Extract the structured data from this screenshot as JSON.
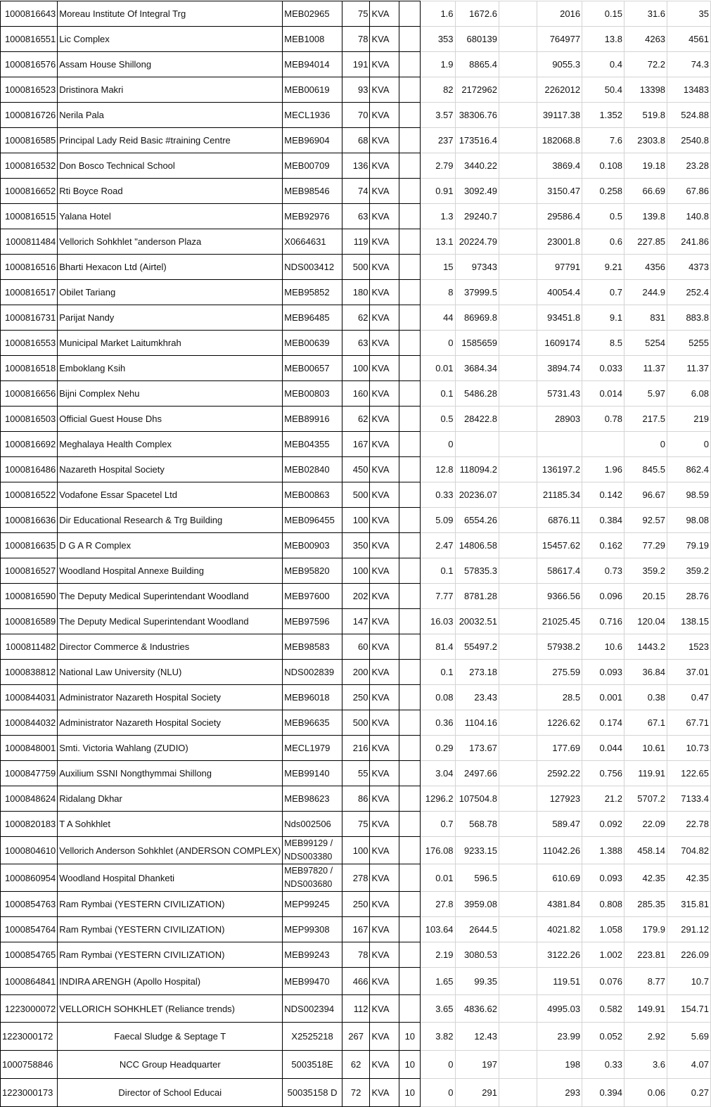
{
  "sheet": {
    "rows": [
      [
        "1000816643",
        "Moreau Institute Of Integral Trg",
        "MEB02965",
        "75",
        "KVA",
        "",
        "1.6",
        "1672.6",
        "",
        "2016",
        "0.15",
        "31.6",
        "35"
      ],
      [
        "1000816551",
        "Lic  Complex",
        "MEB1008",
        "78",
        "KVA",
        "",
        "353",
        "680139",
        "",
        "764977",
        "13.8",
        "4263",
        "4561"
      ],
      [
        "1000816576",
        "Assam House Shillong",
        "MEB94014",
        "191",
        "KVA",
        "",
        "1.9",
        "8865.4",
        "",
        "9055.3",
        "0.4",
        "72.2",
        "74.3"
      ],
      [
        "1000816523",
        "Dristinora  Makri",
        "MEB00619",
        "93",
        "KVA",
        "",
        "82",
        "2172962",
        "",
        "2262012",
        "50.4",
        "13398",
        "13483"
      ],
      [
        "1000816726",
        "Nerila  Pala",
        "MECL1936",
        "70",
        "KVA",
        "",
        "3.57",
        "38306.76",
        "",
        "39117.38",
        "1.352",
        "519.8",
        "524.88"
      ],
      [
        "1000816585",
        "Principal  Lady Reid Basic #training Centre",
        "MEB96904",
        "68",
        "KVA",
        "",
        "237",
        "173516.4",
        "",
        "182068.8",
        "7.6",
        "2303.8",
        "2540.8"
      ],
      [
        "1000816532",
        "Don Bosco Technical School",
        "MEB00709",
        "136",
        "KVA",
        "",
        "2.79",
        "3440.22",
        "",
        "3869.4",
        "0.108",
        "19.18",
        "23.28"
      ],
      [
        "1000816652",
        "Rti Boyce Road",
        "MEB98546",
        "74",
        "KVA",
        "",
        "0.91",
        "3092.49",
        "",
        "3150.47",
        "0.258",
        "66.69",
        "67.86"
      ],
      [
        "1000816515",
        "Yalana  Hotel",
        "MEB92976",
        "63",
        "KVA",
        "",
        "1.3",
        "29240.7",
        "",
        "29586.4",
        "0.5",
        "139.8",
        "140.8"
      ],
      [
        "1000811484",
        "Vellorich  Sohkhlet \"anderson Plaza",
        "X0664631",
        "119",
        "KVA",
        "",
        "13.1",
        "20224.79",
        "",
        "23001.8",
        "0.6",
        "227.85",
        "241.86"
      ],
      [
        "1000816516",
        "Bharti Hexacon Ltd (Airtel)",
        "NDS003412",
        "500",
        "KVA",
        "",
        "15",
        "97343",
        "",
        "97791",
        "9.21",
        "4356",
        "4373"
      ],
      [
        "1000816517",
        "Obilet  Tariang",
        "MEB95852",
        "180",
        "KVA",
        "",
        "8",
        "37999.5",
        "",
        "40054.4",
        "0.7",
        "244.9",
        "252.4"
      ],
      [
        "1000816731",
        "Parijat  Nandy",
        "MEB96485",
        "62",
        "KVA",
        "",
        "44",
        "86969.8",
        "",
        "93451.8",
        "9.1",
        "831",
        "883.8"
      ],
      [
        "1000816553",
        "Municipal Market Laitumkhrah",
        "MEB00639",
        "63",
        "KVA",
        "",
        "0",
        "1585659",
        "",
        "1609174",
        "8.5",
        "5254",
        "5255"
      ],
      [
        "1000816518",
        "Emboklang  Ksih",
        "MEB00657",
        "100",
        "KVA",
        "",
        "0.01",
        "3684.34",
        "",
        "3894.74",
        "0.033",
        "11.37",
        "11.37"
      ],
      [
        "1000816656",
        "Bijni Complex Nehu",
        "MEB00803",
        "160",
        "KVA",
        "",
        "0.1",
        "5486.28",
        "",
        "5731.43",
        "0.014",
        "5.97",
        "6.08"
      ],
      [
        "1000816503",
        "Official Guest House Dhs",
        "MEB89916",
        "62",
        "KVA",
        "",
        "0.5",
        "28422.8",
        "",
        "28903",
        "0.78",
        "217.5",
        "219"
      ],
      [
        "1000816692",
        "Meghalaya Health Complex",
        "MEB04355",
        "167",
        "KVA",
        "",
        "0",
        "",
        "",
        "",
        "",
        "0",
        "0"
      ],
      [
        "1000816486",
        "Nazareth  Hospital Society",
        "MEB02840",
        "450",
        "KVA",
        "",
        "12.8",
        "118094.2",
        "",
        "136197.2",
        "1.96",
        "845.5",
        "862.4"
      ],
      [
        "1000816522",
        "Vodafone Essar Spacetel Ltd",
        "MEB00863",
        "500",
        "KVA",
        "",
        "0.33",
        "20236.07",
        "",
        "21185.34",
        "0.142",
        "96.67",
        "98.59"
      ],
      [
        "1000816636",
        "Dir Educational Research & Trg Building",
        "MEB096455",
        "100",
        "KVA",
        "",
        "5.09",
        "6554.26",
        "",
        "6876.11",
        "0.384",
        "92.57",
        "98.08"
      ],
      [
        "1000816635",
        "D G A R  Complex",
        "MEB00903",
        "350",
        "KVA",
        "",
        "2.47",
        "14806.58",
        "",
        "15457.62",
        "0.162",
        "77.29",
        "79.19"
      ],
      [
        "1000816527",
        "Woodland Hospital Annexe Building",
        "MEB95820",
        "100",
        "KVA",
        "",
        "0.1",
        "57835.3",
        "",
        "58617.4",
        "0.73",
        "359.2",
        "359.2"
      ],
      [
        "1000816590",
        "The Deputy Medical Superintendant  Woodland",
        "MEB97600",
        "202",
        "KVA",
        "",
        "7.77",
        "8781.28",
        "",
        "9366.56",
        "0.096",
        "20.15",
        "28.76"
      ],
      [
        "1000816589",
        "The Deputy Medical Superintendant  Woodland",
        "MEB97596",
        "147",
        "KVA",
        "",
        "16.03",
        "20032.51",
        "",
        "21025.45",
        "0.716",
        "120.04",
        "138.15"
      ],
      [
        "1000811482",
        "Director Commerce &  Industries",
        "MEB98583",
        "60",
        "KVA",
        "",
        "81.4",
        "55497.2",
        "",
        "57938.2",
        "10.6",
        "1443.2",
        "1523"
      ],
      [
        "1000838812",
        "National Law University (NLU)",
        "NDS002839",
        "200",
        "KVA",
        "",
        "0.1",
        "273.18",
        "",
        "275.59",
        "0.093",
        "36.84",
        "37.01"
      ],
      [
        "1000844031",
        "Administrator Nazareth Hospital Society",
        "MEB96018",
        "250",
        "KVA",
        "",
        "0.08",
        "23.43",
        "",
        "28.5",
        "0.001",
        "0.38",
        "0.47"
      ],
      [
        "1000844032",
        "Administrator Nazareth Hospital Society",
        "MEB96635",
        "500",
        "KVA",
        "",
        "0.36",
        "1104.16",
        "",
        "1226.62",
        "0.174",
        "67.1",
        "67.71"
      ],
      [
        "1000848001",
        "Smti. Victoria Wahlang (ZUDIO)",
        "MECL1979",
        "216",
        "KVA",
        "",
        "0.29",
        "173.67",
        "",
        "177.69",
        "0.044",
        "10.61",
        "10.73"
      ],
      [
        "1000847759",
        "Auxilium SSNI Nongthymmai Shillong",
        "MEB99140",
        "55",
        "KVA",
        "",
        "3.04",
        "2497.66",
        "",
        "2592.22",
        "0.756",
        "119.91",
        "122.65"
      ],
      [
        "1000848624",
        "Ridalang Dkhar",
        "MEB98623",
        "86",
        "KVA",
        "",
        "1296.2",
        "107504.8",
        "",
        "127923",
        "21.2",
        "5707.2",
        "7133.4"
      ],
      [
        "1000820183",
        "T A Sohkhlet",
        "Nds002506",
        "75",
        "KVA",
        "",
        "0.7",
        "568.78",
        "",
        "589.47",
        "0.092",
        "22.09",
        "22.78"
      ],
      [
        "1000804610",
        "Vellorich Anderson Sohkhlet (ANDERSON COMPLEX)",
        "MEB99129 /\nNDS003380",
        "100",
        "KVA",
        "",
        "176.08",
        "9233.15",
        "",
        "11042.26",
        "1.388",
        "458.14",
        "704.82"
      ],
      [
        "1000860954",
        "Woodland Hospital Dhanketi",
        "MEB97820 /\nNDS003680",
        "278",
        "KVA",
        "",
        "0.01",
        "596.5",
        "",
        "610.69",
        "0.093",
        "42.35",
        "42.35"
      ],
      [
        "1000854763",
        "Ram Rymbai (YESTERN CIVILIZATION)",
        "MEP99245",
        "250",
        "KVA",
        "",
        "27.8",
        "3959.08",
        "",
        "4381.84",
        "0.808",
        "285.35",
        "315.81"
      ],
      [
        "1000854764",
        "Ram Rymbai (YESTERN CIVILIZATION)",
        "MEP99308",
        "167",
        "KVA",
        "",
        "103.64",
        "2644.5",
        "",
        "4021.82",
        "1.058",
        "179.9",
        "291.12"
      ],
      [
        "1000854765",
        "Ram Rymbai (YESTERN CIVILIZATION)",
        "MEB99243",
        "78",
        "KVA",
        "",
        "2.19",
        "3080.53",
        "",
        "3122.26",
        "1.002",
        "223.81",
        "226.09"
      ],
      [
        "1000864841",
        "INDIRA ARENGH (Apollo Hospital)",
        "MEB99470",
        "466",
        "KVA",
        "",
        "1.65",
        "99.35",
        "",
        "119.51",
        "0.076",
        "8.77",
        "10.7"
      ],
      [
        "1223000072",
        "VELLORICH SOHKHLET (Reliance trends)",
        "NDS002394",
        "112",
        "KVA",
        "",
        "3.65",
        "4836.62",
        "",
        "4995.03",
        "0.582",
        "149.91",
        "154.71"
      ],
      [
        "1223000172",
        "Faecal Sludge & Septage T",
        "X2525218",
        "267",
        "KVA",
        "10",
        "3.82",
        "12.43",
        "",
        "23.99",
        "0.052",
        "2.92",
        "5.69"
      ],
      [
        "1000758846",
        "NCC Group Headquarter",
        "5003518E",
        "62",
        "KVA",
        "10",
        "0",
        "197",
        "",
        "198",
        "0.33",
        "3.6",
        "4.07"
      ],
      [
        "1223000173",
        "Director of School Educai",
        "50035158 D",
        "72",
        "KVA",
        "10",
        "0",
        "291",
        "",
        "293",
        "0.394",
        "0.06",
        "0.27"
      ]
    ]
  }
}
